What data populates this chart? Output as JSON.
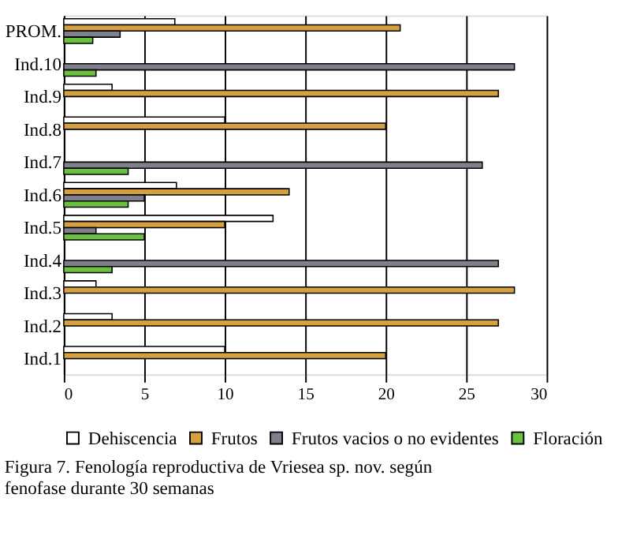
{
  "chart_data": {
    "type": "bar",
    "orientation": "horizontal",
    "categories": [
      "PROM.",
      "Ind.10",
      "Ind.9",
      "Ind.8",
      "Ind.7",
      "Ind.6",
      "Ind.5",
      "Ind.4",
      "Ind.3",
      "Ind.2",
      "Ind.1"
    ],
    "series": [
      {
        "name": "Dehiscencia",
        "color": "#ffffff",
        "values": [
          6.9,
          null,
          3,
          10,
          null,
          7,
          13,
          null,
          2,
          3,
          10
        ]
      },
      {
        "name": "Frutos",
        "color": "#d4a040",
        "values": [
          20.9,
          null,
          27,
          20,
          null,
          14,
          10,
          null,
          28,
          27,
          20
        ]
      },
      {
        "name": "Frutos vacios o no evidentes",
        "color": "#80808c",
        "values": [
          3.5,
          28,
          null,
          null,
          26,
          5,
          2,
          27,
          null,
          null,
          null
        ]
      },
      {
        "name": "Floración",
        "color": "#6cc040",
        "values": [
          1.8,
          2,
          null,
          null,
          4,
          4,
          5,
          3,
          null,
          null,
          null
        ]
      }
    ],
    "xlim": [
      0,
      30
    ],
    "xticks": [
      0,
      5,
      10,
      15,
      20,
      25,
      30
    ],
    "grid": "x",
    "legend": "bottom",
    "annotations": [
      "Figura 7. Fenología reproductiva de Vriesea sp. nov. según fenofase durante 30 semanas"
    ]
  }
}
